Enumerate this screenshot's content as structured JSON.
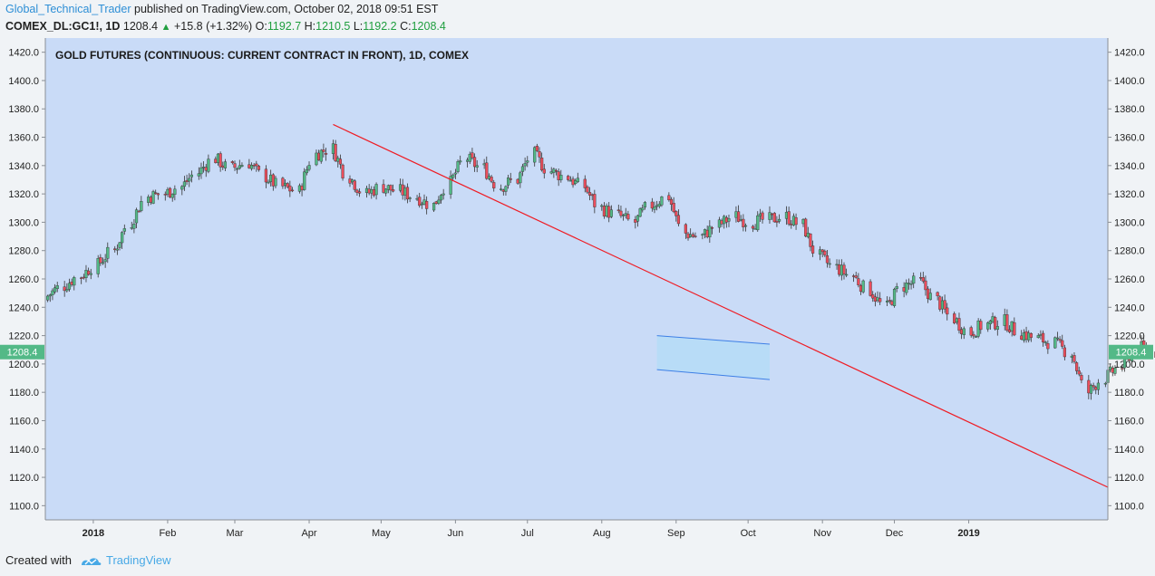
{
  "header": {
    "author": "Global_Technical_Trader",
    "published_text": "published on TradingView.com, October 02, 2018 09:51 EST",
    "symbol": "COMEX_DL:GC1!, 1D",
    "last_price": "1208.4",
    "change": "+15.8 (+1.32%)",
    "open_label": "O:",
    "open_value": "1192.7",
    "high_label": "H:",
    "high_value": "1210.5",
    "low_label": "L:",
    "low_value": "1192.2",
    "close_label": "C:",
    "close_value": "1208.4"
  },
  "footer": {
    "created_with": "Created with",
    "brand": "TradingView",
    "logo_icon": "tradingview-logo-icon"
  },
  "colors": {
    "plot_bg": "#c9dbf7",
    "up_candle": "#53b987",
    "down_candle": "#eb4d5c",
    "trendline": "#ef1c24",
    "channel_stroke": "#3d7fe6",
    "channel_fill": "#a9dcf7",
    "price_label_bg": "#53b987"
  },
  "chart_data": {
    "type": "candlestick",
    "title": "GOLD FUTURES (CONTINUOUS: CURRENT CONTRACT IN FRONT), 1D, COMEX",
    "xlabel": "",
    "ylabel": "",
    "ylim": [
      1090,
      1430
    ],
    "y_ticks": [
      "1420.0",
      "1400.0",
      "1380.0",
      "1360.0",
      "1340.0",
      "1320.0",
      "1300.0",
      "1280.0",
      "1260.0",
      "1240.0",
      "1220.0",
      "1200.0",
      "1180.0",
      "1160.0",
      "1140.0",
      "1120.0",
      "1100.0"
    ],
    "x_axis": "dates",
    "x_range": [
      "2017-12-12",
      "2019-02-28"
    ],
    "x_ticks": [
      {
        "label": "2018",
        "date": "2018-01-01",
        "bold": true
      },
      {
        "label": "Feb",
        "date": "2018-02-01"
      },
      {
        "label": "Mar",
        "date": "2018-03-01"
      },
      {
        "label": "Apr",
        "date": "2018-04-01"
      },
      {
        "label": "May",
        "date": "2018-05-01"
      },
      {
        "label": "Jun",
        "date": "2018-06-01"
      },
      {
        "label": "Jul",
        "date": "2018-07-01"
      },
      {
        "label": "Aug",
        "date": "2018-08-01"
      },
      {
        "label": "Sep",
        "date": "2018-09-01"
      },
      {
        "label": "Oct",
        "date": "2018-10-01"
      },
      {
        "label": "Nov",
        "date": "2018-11-01"
      },
      {
        "label": "Dec",
        "date": "2018-12-01"
      },
      {
        "label": "2019",
        "date": "2019-01-01",
        "bold": true
      }
    ],
    "candle_series": {
      "name": "",
      "weekly_closes": [
        1248,
        1255,
        1262,
        1270,
        1280,
        1300,
        1318,
        1320,
        1325,
        1335,
        1345,
        1338,
        1342,
        1332,
        1325,
        1322,
        1348,
        1352,
        1332,
        1320,
        1325,
        1322,
        1318,
        1312,
        1328,
        1345,
        1338,
        1325,
        1330,
        1348,
        1336,
        1332,
        1325,
        1310,
        1305,
        1300,
        1312,
        1318,
        1292,
        1290,
        1298,
        1304,
        1300,
        1302,
        1304,
        1298,
        1276,
        1268,
        1262,
        1252,
        1240,
        1255,
        1258,
        1245,
        1232,
        1222,
        1228,
        1230,
        1222,
        1218,
        1215,
        1208,
        1180,
        1190,
        1198,
        1212,
        1208,
        1204,
        1206,
        1202,
        1210,
        1200,
        1208
      ],
      "last_close": 1208.4,
      "last_label": "1208.4"
    },
    "annotations": [
      {
        "type": "trendline",
        "from": {
          "date": "2018-04-11",
          "price": 1369
        },
        "to": {
          "date": "2019-02-28",
          "price": 1113
        }
      },
      {
        "type": "channel",
        "upper": {
          "from": {
            "date": "2018-08-24",
            "price": 1220
          },
          "to": {
            "date": "2018-10-10",
            "price": 1214
          }
        },
        "lower": {
          "from": {
            "date": "2018-08-24",
            "price": 1196
          },
          "to": {
            "date": "2018-10-10",
            "price": 1189
          }
        }
      }
    ]
  }
}
